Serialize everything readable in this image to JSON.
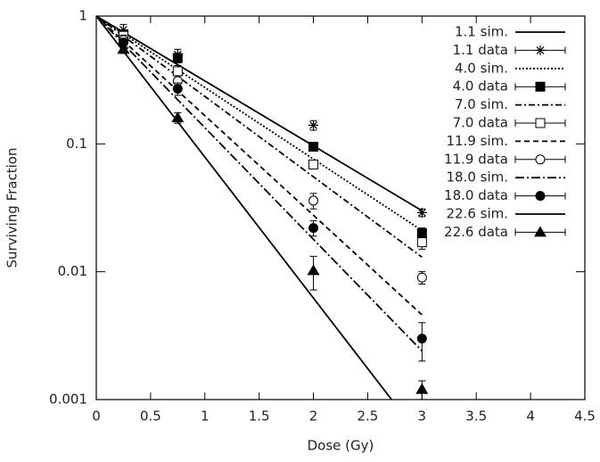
{
  "chart_data": {
    "type": "line",
    "xlabel": "Dose (Gy)",
    "ylabel": "Surviving Fraction",
    "log_y": true,
    "xlim": [
      0,
      4.5
    ],
    "ylim": [
      0.001,
      1
    ],
    "xticks": [
      0,
      0.5,
      1,
      1.5,
      2,
      2.5,
      3,
      3.5,
      4,
      4.5
    ],
    "yticks": [
      0.001,
      0.01,
      0.1,
      1
    ],
    "legend": "upper right",
    "series": [
      {
        "name": "1.1 sim.",
        "color": "#000000",
        "dash": "none",
        "x": [
          0,
          3
        ],
        "values": [
          1,
          0.03
        ]
      },
      {
        "name": "1.1 data",
        "color": "#000000",
        "marker": "asterisk",
        "x": [
          0.25,
          0.75,
          2,
          3
        ],
        "values": [
          0.78,
          0.5,
          0.14,
          0.029
        ],
        "errors": [
          0.08,
          0.05,
          0.012,
          0.002
        ]
      },
      {
        "name": "4.0 sim.",
        "color": "#000000",
        "dash": "2,2",
        "x": [
          0,
          3
        ],
        "values": [
          1,
          0.021
        ]
      },
      {
        "name": "4.0 data",
        "color": "#000000",
        "marker": "filled-square",
        "x": [
          0.25,
          0.75,
          2,
          3
        ],
        "values": [
          0.72,
          0.47,
          0.095,
          0.02
        ],
        "errors": [
          0.06,
          0.04,
          0.006,
          0.002
        ]
      },
      {
        "name": "7.0 sim.",
        "color": "#000000",
        "dash": "7,3,2,3",
        "x": [
          0,
          3
        ],
        "values": [
          1,
          0.013
        ]
      },
      {
        "name": "7.0 data",
        "color": "#000000",
        "marker": "open-square",
        "x": [
          0.25,
          0.75,
          2,
          3
        ],
        "values": [
          0.7,
          0.37,
          0.069,
          0.017
        ],
        "errors": [
          0.06,
          0.04,
          0.005,
          0.002
        ]
      },
      {
        "name": "11.9 sim.",
        "color": "#000000",
        "dash": "6,4",
        "x": [
          0,
          3
        ],
        "values": [
          1,
          0.0046
        ]
      },
      {
        "name": "11.9 data",
        "color": "#000000",
        "marker": "open-circle",
        "x": [
          0.25,
          0.75,
          2,
          3
        ],
        "values": [
          0.65,
          0.31,
          0.036,
          0.009
        ],
        "errors": [
          0.06,
          0.03,
          0.005,
          0.001
        ]
      },
      {
        "name": "18.0 sim.",
        "color": "#000000",
        "dash": "10,3,2,3",
        "x": [
          0,
          3
        ],
        "values": [
          1,
          0.0024
        ]
      },
      {
        "name": "18.0 data",
        "color": "#000000",
        "marker": "filled-circle",
        "x": [
          0.25,
          0.75,
          2,
          3
        ],
        "values": [
          0.62,
          0.27,
          0.022,
          0.003
        ],
        "errors": [
          0.05,
          0.03,
          0.003,
          0.001
        ]
      },
      {
        "name": "22.6 sim.",
        "color": "#000000",
        "dash": "none",
        "x": [
          0,
          2.72
        ],
        "values": [
          1,
          0.001
        ]
      },
      {
        "name": "22.6 data",
        "color": "#000000",
        "marker": "filled-triangle",
        "x": [
          0.25,
          0.75,
          2,
          3
        ],
        "values": [
          0.55,
          0.16,
          0.0102,
          0.0012
        ],
        "errors": [
          0.04,
          0.015,
          0.003,
          0.0002
        ]
      }
    ]
  }
}
